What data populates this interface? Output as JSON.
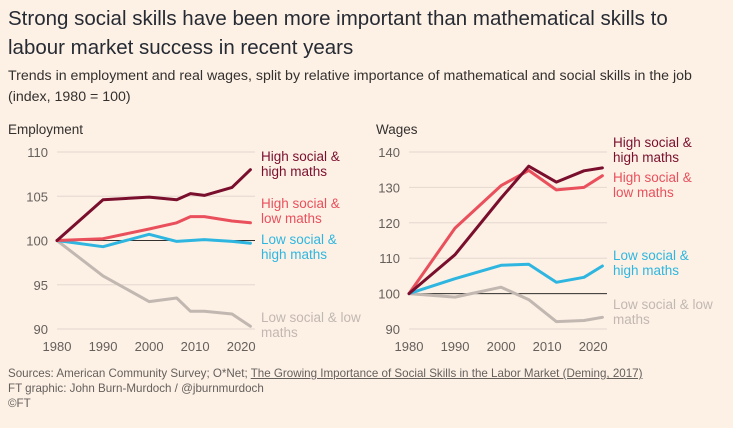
{
  "header": {
    "title": "Strong social skills have been more important than mathematical skills to labour market success in recent years",
    "subtitle": "Trends in employment and real wages, split by relative importance of mathematical and social skills in the job (index, 1980 = 100)"
  },
  "footer": {
    "sources_prefix": "Sources: American Community Survey; O*Net; ",
    "sources_link": "The Growing Importance of Social Skills in the Labor Market (Deming, 2017)",
    "credit": "FT graphic: John Burn-Murdoch / @jburnmurdoch",
    "copyright": "©FT"
  },
  "colors": {
    "background": "#fdf1e6",
    "high_social_high_maths": "#7a0e2d",
    "high_social_low_maths": "#e9505c",
    "low_social_high_maths": "#2fb6e0",
    "low_social_low_maths": "#c2b8b1",
    "gridline": "#e3d8cf",
    "baseline": "#33302e"
  },
  "chart_data": [
    {
      "type": "line",
      "title": "Employment",
      "xlim": [
        1980,
        2023
      ],
      "ylim": [
        90,
        110
      ],
      "x_ticks": [
        1980,
        1990,
        2000,
        2010,
        2020
      ],
      "y_ticks": [
        90,
        95,
        100,
        105,
        110
      ],
      "baseline": 100,
      "grid": true,
      "series": [
        {
          "name": "High social & high maths",
          "label_lines": [
            "High social &",
            "high maths"
          ],
          "color_key": "high_social_high_maths",
          "x": [
            1980,
            1990,
            2000,
            2006,
            2009,
            2012,
            2018,
            2022
          ],
          "y": [
            100,
            104.6,
            104.9,
            104.6,
            105.3,
            105.1,
            106.0,
            108.0
          ]
        },
        {
          "name": "High social & low maths",
          "label_lines": [
            "High social &",
            "low maths"
          ],
          "color_key": "high_social_low_maths",
          "x": [
            1980,
            1990,
            2000,
            2006,
            2009,
            2012,
            2018,
            2022
          ],
          "y": [
            100,
            100.2,
            101.3,
            102.0,
            102.7,
            102.7,
            102.2,
            102.0
          ]
        },
        {
          "name": "Low social & high maths",
          "label_lines": [
            "Low social &",
            "high maths"
          ],
          "color_key": "low_social_high_maths",
          "x": [
            1980,
            1990,
            2000,
            2006,
            2012,
            2018,
            2022
          ],
          "y": [
            100,
            99.3,
            100.7,
            99.9,
            100.1,
            99.9,
            99.7
          ]
        },
        {
          "name": "Low social & low maths",
          "label_lines": [
            "Low social & low",
            "maths"
          ],
          "color_key": "low_social_low_maths",
          "x": [
            1980,
            1990,
            2000,
            2006,
            2009,
            2012,
            2018,
            2022
          ],
          "y": [
            100,
            96.0,
            93.1,
            93.5,
            92.0,
            92.0,
            91.7,
            90.3
          ]
        }
      ]
    },
    {
      "type": "line",
      "title": "Wages",
      "xlim": [
        1980,
        2023
      ],
      "ylim": [
        90,
        140
      ],
      "x_ticks": [
        1980,
        1990,
        2000,
        2010,
        2020
      ],
      "y_ticks": [
        90,
        100,
        110,
        120,
        130,
        140
      ],
      "baseline": 100,
      "grid": true,
      "series": [
        {
          "name": "High social & high maths",
          "label_lines": [
            "High social &",
            "high maths"
          ],
          "color_key": "high_social_high_maths",
          "x": [
            1980,
            1990,
            2000,
            2006,
            2012,
            2018,
            2022
          ],
          "y": [
            100,
            111,
            127,
            136,
            131.5,
            134.7,
            135.5
          ]
        },
        {
          "name": "High social & low maths",
          "label_lines": [
            "High social &",
            "low maths"
          ],
          "color_key": "high_social_low_maths",
          "x": [
            1980,
            1990,
            2000,
            2006,
            2012,
            2018,
            2022
          ],
          "y": [
            100,
            118.5,
            130.5,
            134.8,
            129.3,
            130,
            133.3
          ]
        },
        {
          "name": "Low social & high maths",
          "label_lines": [
            "Low social &",
            "high maths"
          ],
          "color_key": "low_social_high_maths",
          "x": [
            1980,
            1990,
            2000,
            2006,
            2012,
            2018,
            2022
          ],
          "y": [
            100,
            104.2,
            108,
            108.3,
            103.2,
            104.6,
            107.8
          ]
        },
        {
          "name": "Low social & low maths",
          "label_lines": [
            "Low social & low",
            "maths"
          ],
          "color_key": "low_social_low_maths",
          "x": [
            1980,
            1990,
            2000,
            2006,
            2012,
            2018,
            2022
          ],
          "y": [
            100,
            99,
            101.8,
            98.3,
            92.1,
            92.4,
            93.3
          ]
        }
      ]
    }
  ]
}
